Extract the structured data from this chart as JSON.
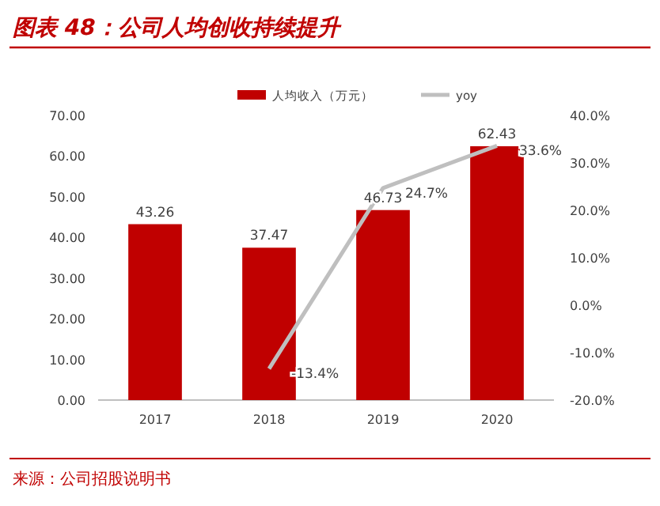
{
  "chart_data": {
    "type": "bar",
    "title": "图表 48：公司人均创收持续提升",
    "categories": [
      "2017",
      "2018",
      "2019",
      "2020"
    ],
    "series": [
      {
        "name": "人均收入（万元）",
        "color": "#c00000",
        "values": [
          43.26,
          37.47,
          46.73,
          62.43
        ],
        "value_labels": [
          "43.26",
          "37.47",
          "46.73",
          "62.43"
        ]
      },
      {
        "name": "yoy",
        "type": "line",
        "axis": "y2",
        "color": "#bfbfbf",
        "values": [
          null,
          -13.4,
          24.7,
          33.6
        ],
        "value_labels": [
          null,
          "-13.4%",
          "24.7%",
          "33.6%"
        ]
      }
    ],
    "ylim": [
      0,
      70
    ],
    "yticks": [
      {
        "value": 0,
        "label": "0.00"
      },
      {
        "value": 10,
        "label": "10.00"
      },
      {
        "value": 20,
        "label": "20.00"
      },
      {
        "value": 30,
        "label": "30.00"
      },
      {
        "value": 40,
        "label": "40.00"
      },
      {
        "value": 50,
        "label": "50.00"
      },
      {
        "value": 60,
        "label": "60.00"
      },
      {
        "value": 70,
        "label": "70.00"
      }
    ],
    "y2lim": [
      -20,
      40
    ],
    "y2ticks": [
      {
        "value": -20,
        "label": "-20.0%"
      },
      {
        "value": -10,
        "label": "-10.0%"
      },
      {
        "value": 0,
        "label": "0.0%"
      },
      {
        "value": 10,
        "label": "10.0%"
      },
      {
        "value": 20,
        "label": "20.0%"
      },
      {
        "value": 30,
        "label": "30.0%"
      },
      {
        "value": 40,
        "label": "40.0%"
      }
    ],
    "legend": "top",
    "grid": false,
    "marker": "none",
    "line_style": "solid",
    "annotations": [
      "来源：公司招股说明书"
    ]
  }
}
